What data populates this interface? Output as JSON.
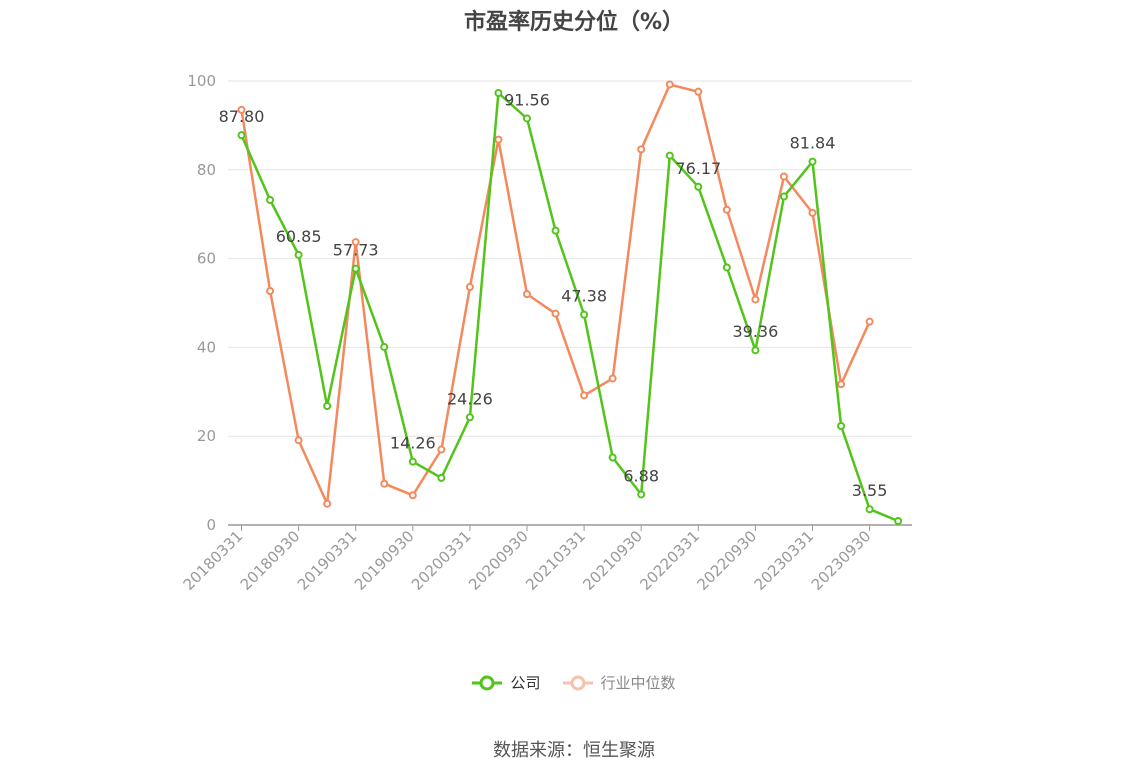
{
  "chart_data": {
    "type": "line",
    "title": "市盈率历史分位（%）",
    "xlabel": "",
    "ylabel": "",
    "ylim": [
      0,
      100
    ],
    "yticks": [
      0,
      20,
      40,
      60,
      80,
      100
    ],
    "x": [
      "20180331",
      "20180630",
      "20180930",
      "20181231",
      "20190331",
      "20190630",
      "20190930",
      "20191231",
      "20200331",
      "20200630",
      "20200930",
      "20201231",
      "20210331",
      "20210630",
      "20210930",
      "20211231",
      "20220331",
      "20220630",
      "20220930",
      "20221231",
      "20230331",
      "20230630",
      "20230930",
      "20231231"
    ],
    "xtick_labels": [
      "20180331",
      "20180930",
      "20190331",
      "20190930",
      "20200331",
      "20200930",
      "20210331",
      "20210930",
      "20220331",
      "20220930",
      "20230331",
      "20230930"
    ],
    "grid": true,
    "legend_position": "bottom",
    "series": [
      {
        "name": "公司",
        "color": "#52c41a",
        "values": [
          87.8,
          73.2,
          60.85,
          26.8,
          57.73,
          40.1,
          14.26,
          10.6,
          24.26,
          97.3,
          91.56,
          66.3,
          47.38,
          15.2,
          6.88,
          83.2,
          76.17,
          58.0,
          39.36,
          74.0,
          81.84,
          22.3,
          3.55,
          0.9
        ],
        "labels": [
          {
            "index": 0,
            "text": "87.80"
          },
          {
            "index": 2,
            "text": "60.85"
          },
          {
            "index": 4,
            "text": "57.73"
          },
          {
            "index": 6,
            "text": "14.26"
          },
          {
            "index": 8,
            "text": "24.26"
          },
          {
            "index": 10,
            "text": "91.56"
          },
          {
            "index": 12,
            "text": "47.38"
          },
          {
            "index": 14,
            "text": "6.88"
          },
          {
            "index": 16,
            "text": "76.17"
          },
          {
            "index": 18,
            "text": "39.36"
          },
          {
            "index": 20,
            "text": "81.84"
          },
          {
            "index": 22,
            "text": "3.55"
          }
        ]
      },
      {
        "name": "行业中位数",
        "color": "#f4895e",
        "values": [
          93.5,
          52.7,
          19.1,
          4.8,
          63.7,
          9.3,
          6.7,
          17.0,
          53.6,
          86.8,
          52.0,
          47.6,
          29.2,
          33.0,
          84.6,
          99.2,
          97.6,
          71.0,
          50.8,
          78.5,
          70.3,
          31.7,
          45.8,
          null
        ]
      }
    ]
  },
  "footer": {
    "source": "数据来源：恒生聚源"
  }
}
